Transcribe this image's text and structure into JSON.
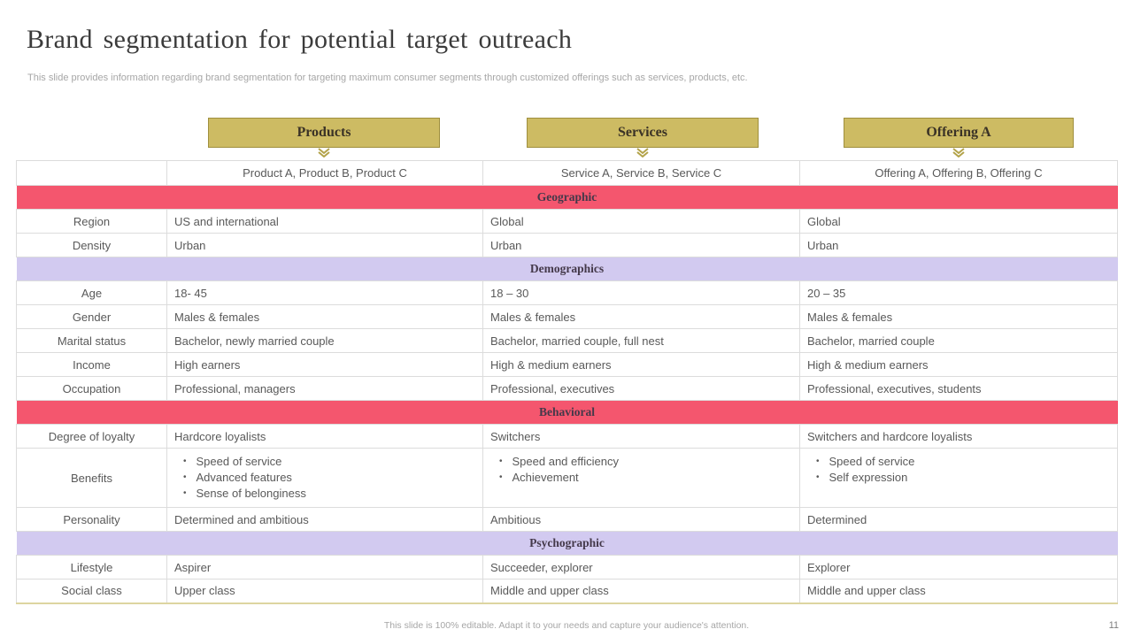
{
  "slide": {
    "title": "Brand segmentation for potential target outreach",
    "subtitle": "This slide provides information regarding brand segmentation for targeting maximum consumer segments through customized offerings such as services, products, etc.",
    "footer_note": "This slide is 100% editable.  Adapt it to your needs and capture your audience's attention.",
    "page_number": "11"
  },
  "colors": {
    "tab_gold": "#cdbb63",
    "tab_gold_border": "#9f8f3e",
    "chevron_gold": "#b3a34a",
    "band_pink": "#f4566e",
    "band_lavender": "#d2caf0",
    "body_text": "#595959",
    "table_border": "#dcdcdc",
    "table_bottom_line": "#ddd5a0"
  },
  "tabs": [
    {
      "label": "Products"
    },
    {
      "label": "Services"
    },
    {
      "label": "Offering A"
    }
  ],
  "table": {
    "header_row": [
      "",
      "Product A, Product B, Product C",
      "Service A, Service B, Service C",
      "Offering A, Offering B, Offering C"
    ],
    "sections": [
      {
        "name": "Geographic",
        "band": "pink",
        "rows": [
          {
            "label": "Region",
            "cells": [
              "US and international",
              "Global",
              "Global"
            ]
          },
          {
            "label": "Density",
            "cells": [
              "Urban",
              "Urban",
              "Urban"
            ]
          }
        ]
      },
      {
        "name": "Demographics",
        "band": "lavender",
        "rows": [
          {
            "label": "Age",
            "cells": [
              "18- 45",
              "18 – 30",
              "20 – 35"
            ]
          },
          {
            "label": "Gender",
            "cells": [
              "Males & females",
              "Males & females",
              "Males & females"
            ]
          },
          {
            "label": "Marital status",
            "cells": [
              "Bachelor, newly married couple",
              "Bachelor, married couple, full nest",
              "Bachelor, married couple"
            ]
          },
          {
            "label": "Income",
            "cells": [
              "High earners",
              "High & medium earners",
              "High & medium earners"
            ]
          },
          {
            "label": "Occupation",
            "cells": [
              "Professional, managers",
              "Professional, executives",
              "Professional, executives, students"
            ]
          }
        ]
      },
      {
        "name": "Behavioral",
        "band": "pink",
        "rows": [
          {
            "label": "Degree of loyalty",
            "cells": [
              "Hardcore loyalists",
              "Switchers",
              "Switchers and hardcore loyalists"
            ]
          },
          {
            "label": "Benefits",
            "bullets": [
              [
                "Speed of service",
                "Advanced features",
                "Sense of belonginess"
              ],
              [
                "Speed and efficiency",
                "Achievement"
              ],
              [
                "Speed of service",
                "Self expression"
              ]
            ]
          },
          {
            "label": "Personality",
            "cells": [
              "Determined and ambitious",
              "Ambitious",
              "Determined"
            ]
          }
        ]
      },
      {
        "name": "Psychographic",
        "band": "lavender",
        "rows": [
          {
            "label": "Lifestyle",
            "cells": [
              "Aspirer",
              "Succeeder, explorer",
              "Explorer"
            ]
          },
          {
            "label": "Social class",
            "cells": [
              "Upper class",
              "Middle and upper class",
              "Middle and upper class"
            ]
          }
        ]
      }
    ]
  }
}
